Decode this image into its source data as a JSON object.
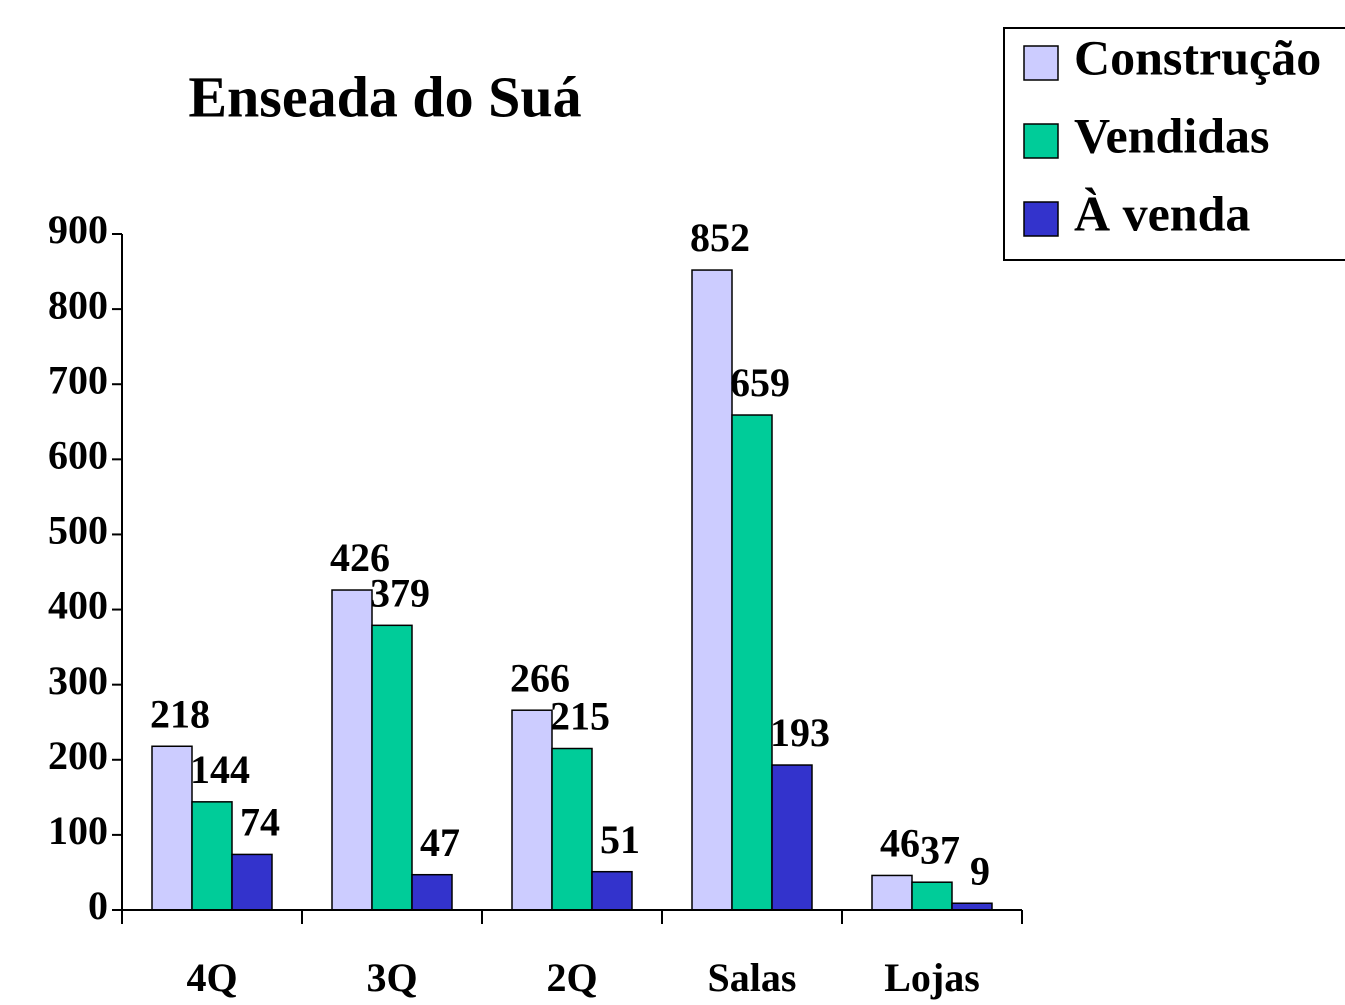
{
  "chart_data": {
    "type": "bar",
    "title": "Enseada do Suá",
    "categories": [
      "4Q",
      "3Q",
      "2Q",
      "Salas",
      "Lojas"
    ],
    "series": [
      {
        "name": "Construção",
        "color": "#ccccff",
        "values": [
          218,
          426,
          266,
          852,
          46
        ]
      },
      {
        "name": "Vendidas",
        "color": "#00cc99",
        "values": [
          144,
          379,
          215,
          659,
          37
        ]
      },
      {
        "name": "À venda",
        "color": "#3333cc",
        "values": [
          74,
          47,
          51,
          193,
          9
        ]
      }
    ],
    "ylim": [
      0,
      900
    ],
    "yticks": [
      0,
      100,
      200,
      300,
      400,
      500,
      600,
      700,
      800,
      900
    ],
    "legend": "top-right"
  }
}
